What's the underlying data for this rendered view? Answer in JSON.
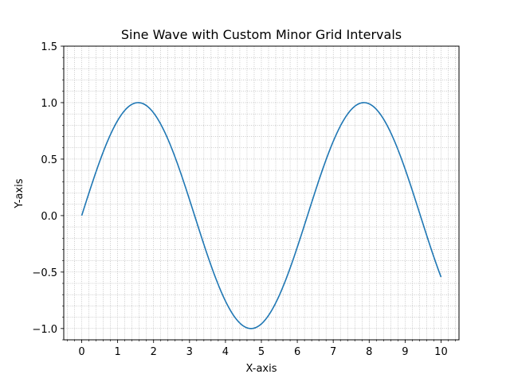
{
  "chart_data": {
    "type": "line",
    "title": "Sine Wave with Custom Minor Grid Intervals",
    "xlabel": "X-axis",
    "ylabel": "Y-axis",
    "xlim": [
      -0.5,
      10.5
    ],
    "ylim": [
      -1.1,
      1.5
    ],
    "x_major_ticks": [
      0,
      1,
      2,
      3,
      4,
      5,
      6,
      7,
      8,
      9,
      10
    ],
    "x_tick_labels": [
      "0",
      "1",
      "2",
      "3",
      "4",
      "5",
      "6",
      "7",
      "8",
      "9",
      "10"
    ],
    "y_major_ticks": [
      -1.0,
      -0.5,
      0.0,
      0.5,
      1.0,
      1.5
    ],
    "y_tick_labels": [
      "−1.0",
      "−0.5",
      "0.0",
      "0.5",
      "1.0",
      "1.5"
    ],
    "x_minor_interval": 0.2,
    "y_minor_interval": 0.1,
    "grid": "minor",
    "grid_color": "#999999",
    "line_color": "#1f77b4",
    "series": [
      {
        "function": "sin(x)",
        "x_range": [
          0,
          10
        ],
        "x": [
          0,
          0.5,
          1,
          1.5708,
          2,
          2.5,
          3,
          3.5,
          4,
          4.7124,
          5,
          5.5,
          6,
          6.5,
          7,
          7.854,
          8,
          8.5,
          9,
          9.5,
          10
        ],
        "y": [
          0,
          0.479,
          0.841,
          1.0,
          0.909,
          0.598,
          0.141,
          -0.351,
          -0.757,
          -1.0,
          -0.959,
          -0.706,
          -0.279,
          0.215,
          0.657,
          1.0,
          0.989,
          0.798,
          0.412,
          -0.075,
          -0.544
        ]
      }
    ]
  }
}
